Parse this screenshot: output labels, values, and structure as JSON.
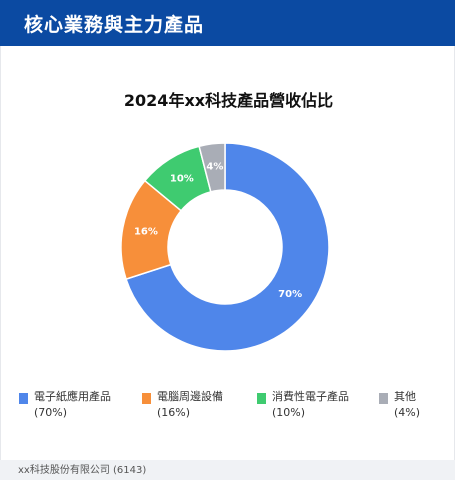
{
  "header": {
    "title": "核心業務與主力產品"
  },
  "chart_data": {
    "type": "pie",
    "title": "2024年xx科技產品營收佔比",
    "categories": [
      "電子紙應用產品",
      "電腦周邊設備",
      "消費性電子產品",
      "其他"
    ],
    "values": [
      70,
      16,
      10,
      4
    ],
    "data_labels": [
      "70%",
      "16%",
      "10%",
      "4%"
    ],
    "legend_values": [
      "(70%)",
      "(16%)",
      "(10%)",
      "(4%)"
    ],
    "colors": [
      "#4f86ea",
      "#f78f3a",
      "#3fcb70",
      "#a9adb6"
    ],
    "donut": true,
    "legend_position": "bottom"
  },
  "footer": {
    "text": "xx科技股份有限公司 (6143)"
  }
}
